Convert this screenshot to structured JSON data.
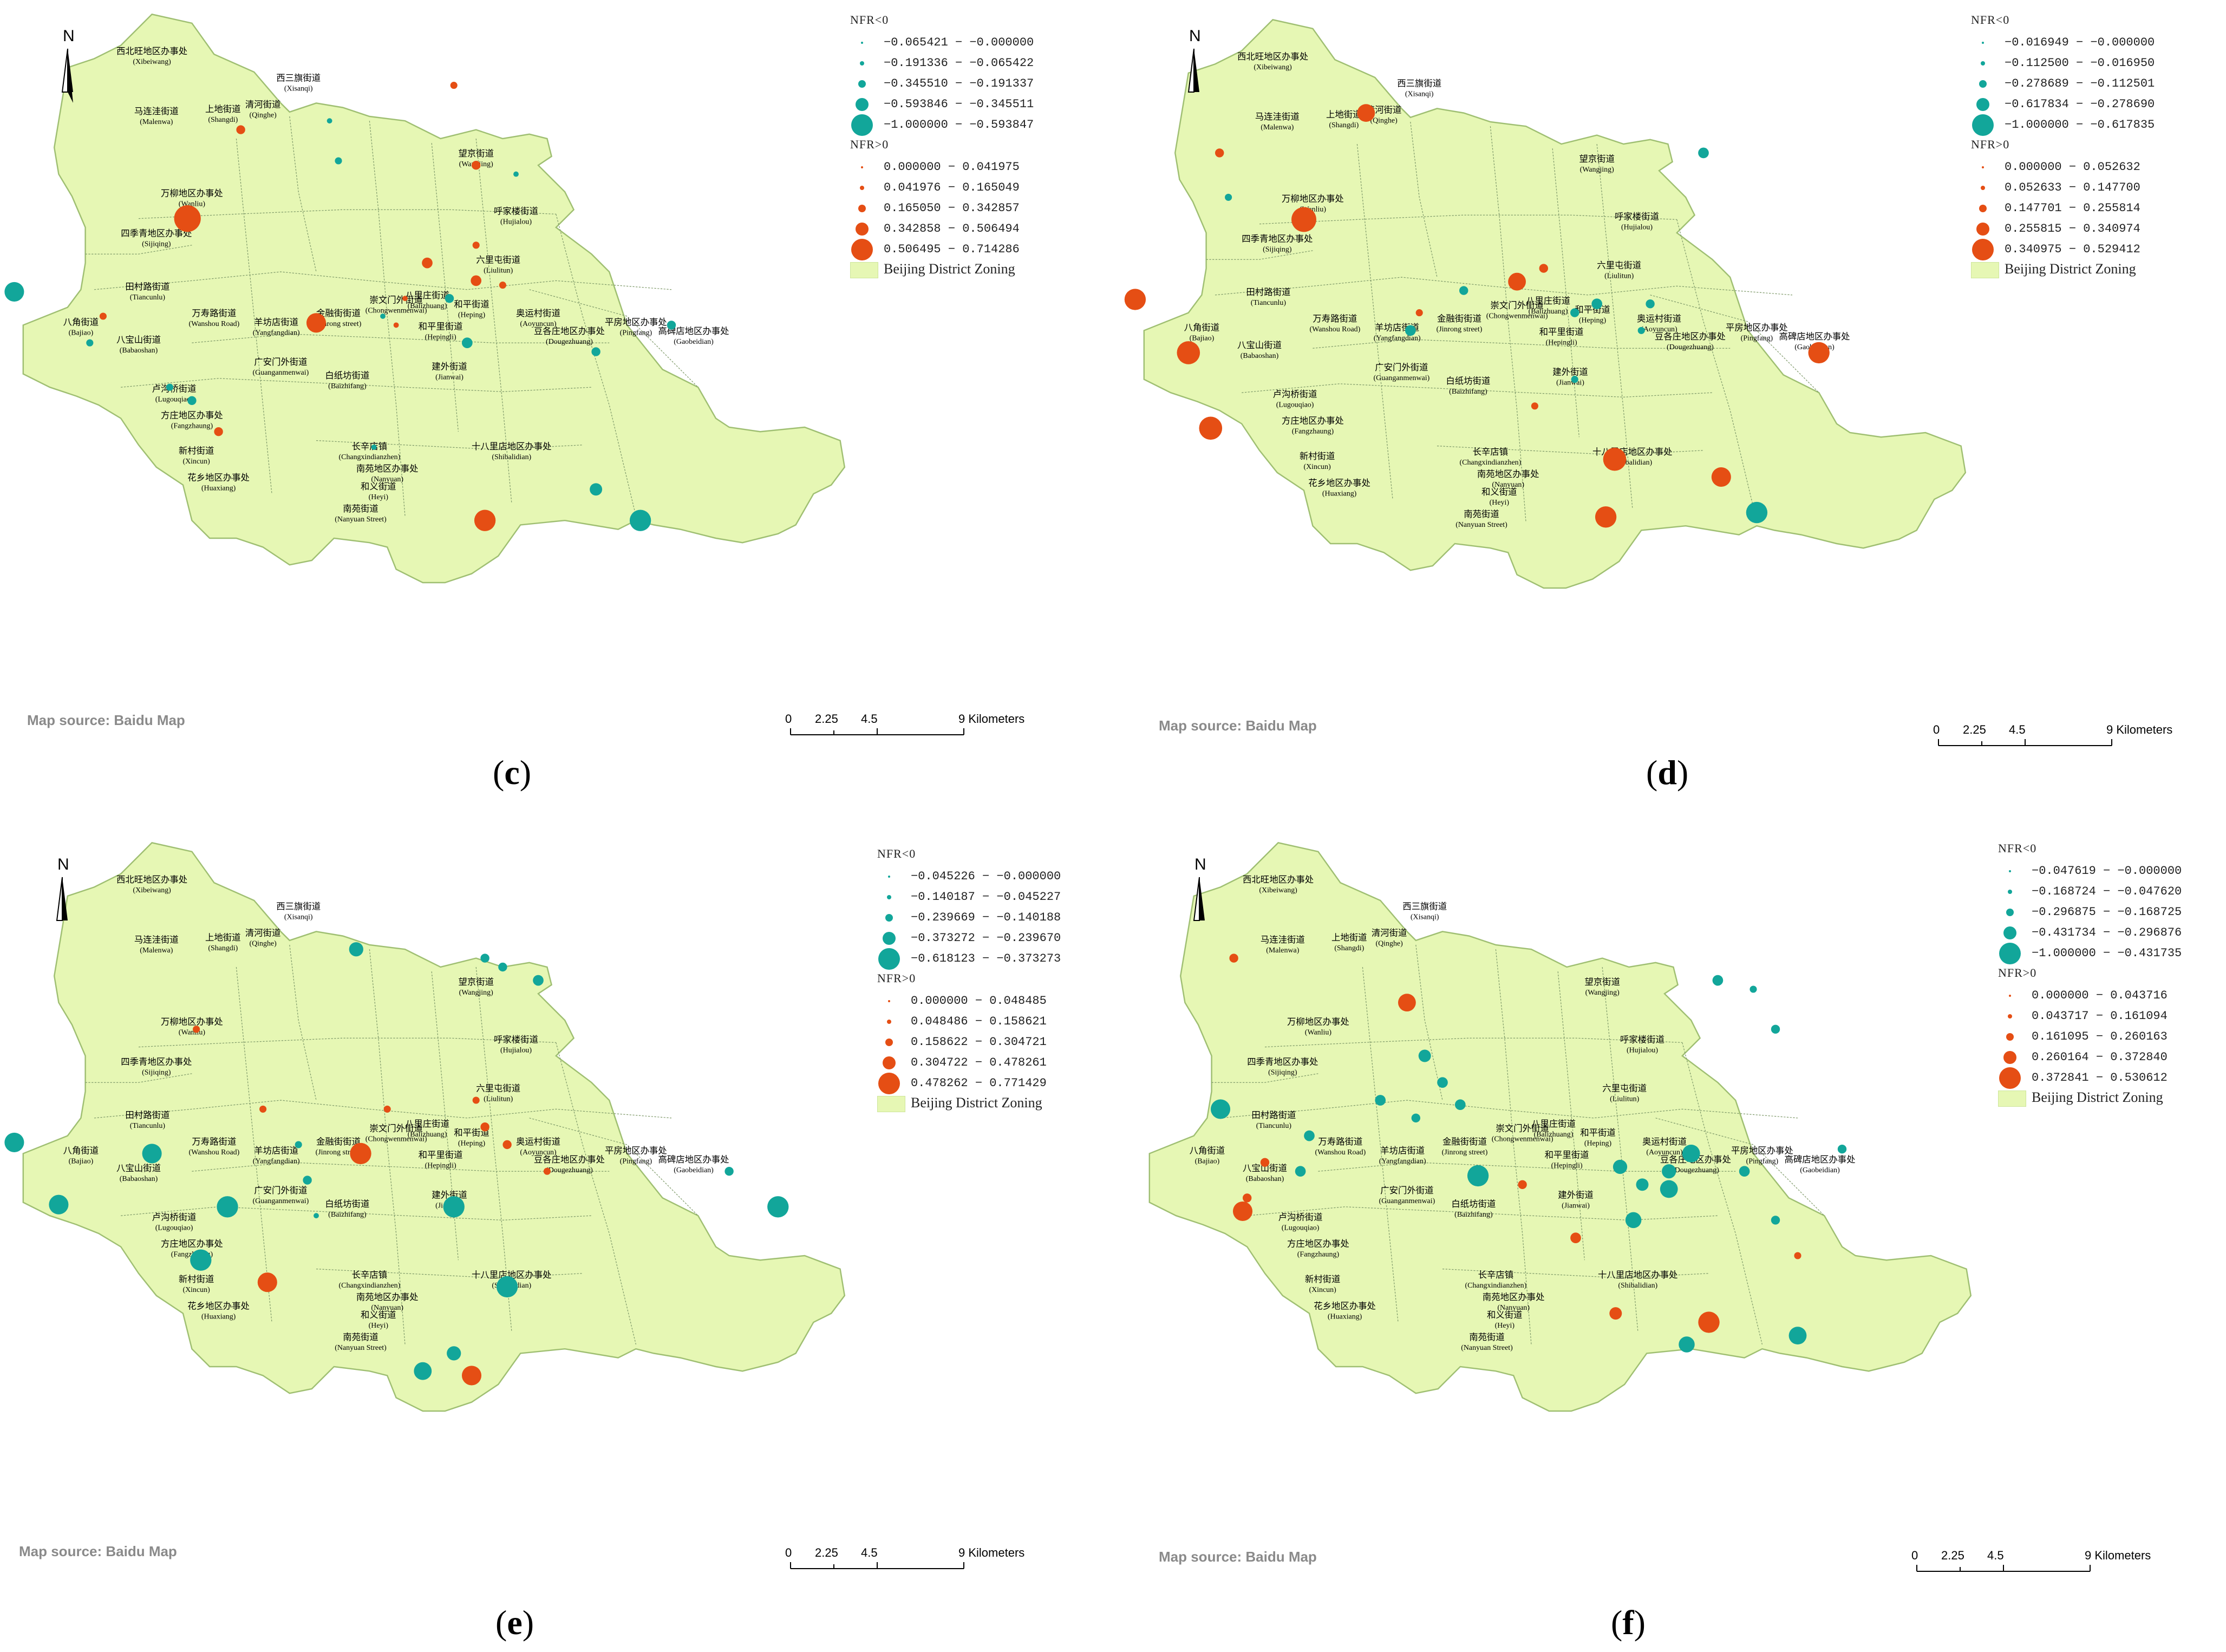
{
  "common": {
    "north_label": "N",
    "source": "Map source: Baidu Map",
    "scale_labels": [
      "0",
      "2.25",
      "4.5",
      "9 Kilometers"
    ],
    "legend_neg_title": "NFR<0",
    "legend_pos_title": "NFR>0",
    "zoning_label": "Beijing District Zoning",
    "colors": {
      "land": "#e6f7b4",
      "land_border": "#9fbf72",
      "negative": "#12a69a",
      "positive": "#e54e14",
      "inner_line": "#7f9a6a"
    },
    "places": [
      {
        "zh": "西北旺地区办事处",
        "en": "(Xibeiwang)"
      },
      {
        "zh": "西三旗街道",
        "en": "(Xisanqi)"
      },
      {
        "zh": "清河街道",
        "en": "(Qinghe)"
      },
      {
        "zh": "上地街道",
        "en": "(Shangdi)"
      },
      {
        "zh": "马连洼街道",
        "en": "(Malenwa)"
      },
      {
        "zh": "望京街道",
        "en": "(Wangjing)"
      },
      {
        "zh": "万柳地区办事处",
        "en": "(Wanliu)"
      },
      {
        "zh": "呼家楼街道",
        "en": "(Hujialou)"
      },
      {
        "zh": "四季青地区办事处",
        "en": "(Sijiqing)"
      },
      {
        "zh": "六里屯街道",
        "en": "(Liulitun)"
      },
      {
        "zh": "田村路街道",
        "en": "(Tiancunlu)"
      },
      {
        "zh": "八角街道",
        "en": "(Bajiao)"
      },
      {
        "zh": "八宝山街道",
        "en": "(Babaoshan)"
      },
      {
        "zh": "万寿路街道",
        "en": "(Wanshou Road)"
      },
      {
        "zh": "羊坊店街道",
        "en": "(Yangfangdian)"
      },
      {
        "zh": "金融街街道",
        "en": "(Jinrong street)"
      },
      {
        "zh": "崇文门外街道",
        "en": "(Chongwenmenwai)"
      },
      {
        "zh": "八里庄街道",
        "en": "(Balizhuang)"
      },
      {
        "zh": "和平街道",
        "en": "(Heping)"
      },
      {
        "zh": "和平里街道",
        "en": "(Hepingli)"
      },
      {
        "zh": "奥运村街道",
        "en": "(Aoyuncun)"
      },
      {
        "zh": "平房地区办事处",
        "en": "(Pingfang)"
      },
      {
        "zh": "豆各庄地区办事处",
        "en": "(Dougezhuang)"
      },
      {
        "zh": "高碑店地区办事处",
        "en": "(Gaobeidian)"
      },
      {
        "zh": "广安门外街道",
        "en": "(Guanganmenwai)"
      },
      {
        "zh": "白纸坊街道",
        "en": "(Baizhifang)"
      },
      {
        "zh": "建外街道",
        "en": "(Jianwai)"
      },
      {
        "zh": "卢沟桥街道",
        "en": "(Lugouqiao)"
      },
      {
        "zh": "方庄地区办事处",
        "en": "(Fangzhaung)"
      },
      {
        "zh": "长辛店镇",
        "en": "(Changxindianzhen)"
      },
      {
        "zh": "十八里店地区办事处",
        "en": "(Shibalidian)"
      },
      {
        "zh": "新村街道",
        "en": "(Xincun)"
      },
      {
        "zh": "花乡地区办事处",
        "en": "(Huaxiang)"
      },
      {
        "zh": "南苑地区办事处",
        "en": "(Nanyuan)"
      },
      {
        "zh": "和义街道",
        "en": "(Heyi)"
      },
      {
        "zh": "南苑街道",
        "en": "(Nanyuan Street)"
      }
    ]
  },
  "panels": [
    {
      "caption_letter": "c",
      "neg_ranges": [
        "−0.065421 − −0.000000",
        "−0.191336 − −0.065422",
        "−0.345510 − −0.191337",
        "−0.593846 − −0.345511",
        "−1.000000 − −0.593847"
      ],
      "pos_ranges": [
        "0.000000 − 0.041975",
        "0.041976 − 0.165049",
        "0.165050 − 0.342857",
        "0.342858 − 0.506494",
        "0.506495 − 0.714286"
      ]
    },
    {
      "caption_letter": "d",
      "neg_ranges": [
        "−0.016949 − −0.000000",
        "−0.112500 − −0.016950",
        "−0.278689 − −0.112501",
        "−0.617834 − −0.278690",
        "−1.000000 − −0.617835"
      ],
      "pos_ranges": [
        "0.000000 − 0.052632",
        "0.052633 − 0.147700",
        "0.147701 − 0.255814",
        "0.255815 − 0.340974",
        "0.340975 − 0.529412"
      ]
    },
    {
      "caption_letter": "e",
      "neg_ranges": [
        "−0.045226 − −0.000000",
        "−0.140187 − −0.045227",
        "−0.239669 − −0.140188",
        "−0.373272 − −0.239670",
        "−0.618123 − −0.373273"
      ],
      "pos_ranges": [
        "0.000000 − 0.048485",
        "0.048486 − 0.158621",
        "0.158622 − 0.304721",
        "0.304722 − 0.478261",
        "0.478262 − 0.771429"
      ]
    },
    {
      "caption_letter": "f",
      "neg_ranges": [
        "−0.047619 − −0.000000",
        "−0.168724 − −0.047620",
        "−0.296875 − −0.168725",
        "−0.431734 − −0.296876",
        "−1.000000 − −0.431735"
      ],
      "pos_ranges": [
        "0.000000 − 0.043716",
        "0.043717 − 0.161094",
        "0.161095 − 0.260163",
        "0.260164 − 0.372840",
        "0.372841 − 0.530612"
      ]
    }
  ]
}
